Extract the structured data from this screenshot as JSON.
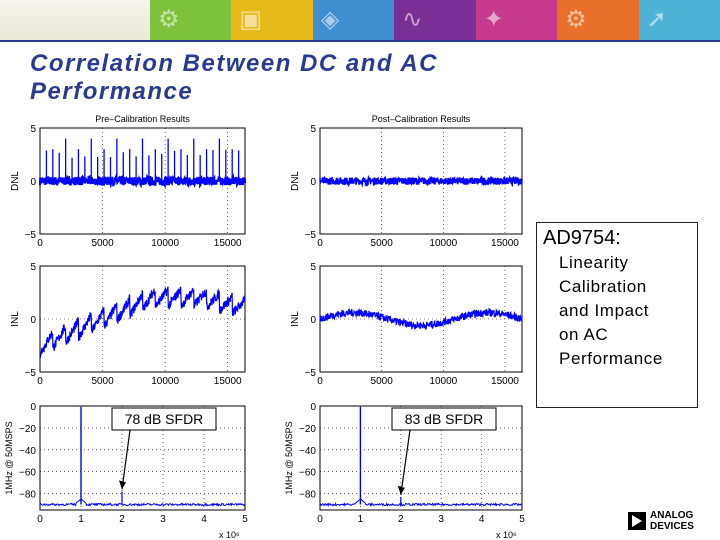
{
  "slide": {
    "title": "Correlation Between DC and AC Performance",
    "callout_head": "AD9754:",
    "callout_lines": [
      "Linearity",
      "Calibration",
      "and Impact",
      "on AC",
      "Performance"
    ],
    "logo_lines": [
      "ANALOG",
      "DEVICES"
    ]
  },
  "banner": {
    "tiles": [
      {
        "color": "#7ec13a",
        "icon": "gear-circuit-icon"
      },
      {
        "color": "#e7ba1c",
        "icon": "microchip-icon"
      },
      {
        "color": "#3f8fd0",
        "icon": "dsp-chip-icon"
      },
      {
        "color": "#7a2f96",
        "icon": "signal-wave-icon"
      },
      {
        "color": "#c63b8e",
        "icon": "mems-sensor-icon"
      },
      {
        "color": "#e8702a",
        "icon": "gear-icon"
      },
      {
        "color": "#4fb3d8",
        "icon": "arrow-chip-icon"
      }
    ]
  },
  "chart_data": [
    {
      "type": "line",
      "title": "Pre–Calibration Results",
      "ylabel": "DNL",
      "xlim": [
        0,
        16383
      ],
      "ylim": [
        -5,
        5
      ],
      "xticks": [
        "0",
        "5000",
        "10000",
        "15000"
      ],
      "yticks": [
        "5",
        "0",
        "−5"
      ],
      "series": [
        {
          "color": "#0000ff",
          "pattern": "periodic spikes up to 4 LSB on flat baseline"
        }
      ]
    },
    {
      "type": "line",
      "title": "Post–Calibration Results",
      "ylabel": "DNL",
      "xlim": [
        0,
        16383
      ],
      "ylim": [
        -5,
        5
      ],
      "xticks": [
        "0",
        "5000",
        "10000",
        "15000"
      ],
      "yticks": [
        "5",
        "0",
        "−5"
      ],
      "series": [
        {
          "color": "#0000ff",
          "pattern": "flat near 0 with small noise"
        }
      ]
    },
    {
      "type": "line",
      "title": "",
      "ylabel": "INL",
      "xlim": [
        0,
        16383
      ],
      "ylim": [
        -5,
        5
      ],
      "xticks": [
        "0",
        "5000",
        "10000",
        "15000"
      ],
      "yticks": [
        "5",
        "0",
        "−5"
      ],
      "series": [
        {
          "color": "#0000ff",
          "pattern": "sawtooth rising from about -3 to 3"
        }
      ]
    },
    {
      "type": "line",
      "title": "",
      "ylabel": "INL",
      "xlim": [
        0,
        16383
      ],
      "ylim": [
        -5,
        5
      ],
      "xticks": [
        "0",
        "5000",
        "10000",
        "15000"
      ],
      "yticks": [
        "5",
        "0",
        "−5"
      ],
      "series": [
        {
          "color": "#0000ff",
          "pattern": "small wave near 0"
        }
      ]
    },
    {
      "type": "line",
      "title": "",
      "ylabel": "1MHz @ 50MSPS",
      "xlim": [
        0,
        5
      ],
      "ylim": [
        -95,
        0
      ],
      "xticks": [
        "0",
        "1",
        "2",
        "3",
        "4",
        "5"
      ],
      "yticks": [
        "0",
        "−20",
        "−40",
        "−60",
        "−80"
      ],
      "xscale_label": "x 10⁶",
      "annotation": "78 dB SFDR",
      "series": [
        {
          "color": "#0000ff",
          "fundamental_x": 1,
          "spur_x": 2,
          "spur_db": -78,
          "floor_db": -90
        }
      ]
    },
    {
      "type": "line",
      "title": "",
      "ylabel": "1MHz @ 50MSPS",
      "xlim": [
        0,
        5
      ],
      "ylim": [
        -95,
        0
      ],
      "xticks": [
        "0",
        "1",
        "2",
        "3",
        "4",
        "5"
      ],
      "yticks": [
        "0",
        "−20",
        "−40",
        "−60",
        "−80"
      ],
      "xscale_label": "x 10⁶",
      "annotation": "83 dB SFDR",
      "series": [
        {
          "color": "#0000ff",
          "fundamental_x": 1,
          "spur_x": 2,
          "spur_db": -83,
          "floor_db": -90
        }
      ]
    }
  ]
}
